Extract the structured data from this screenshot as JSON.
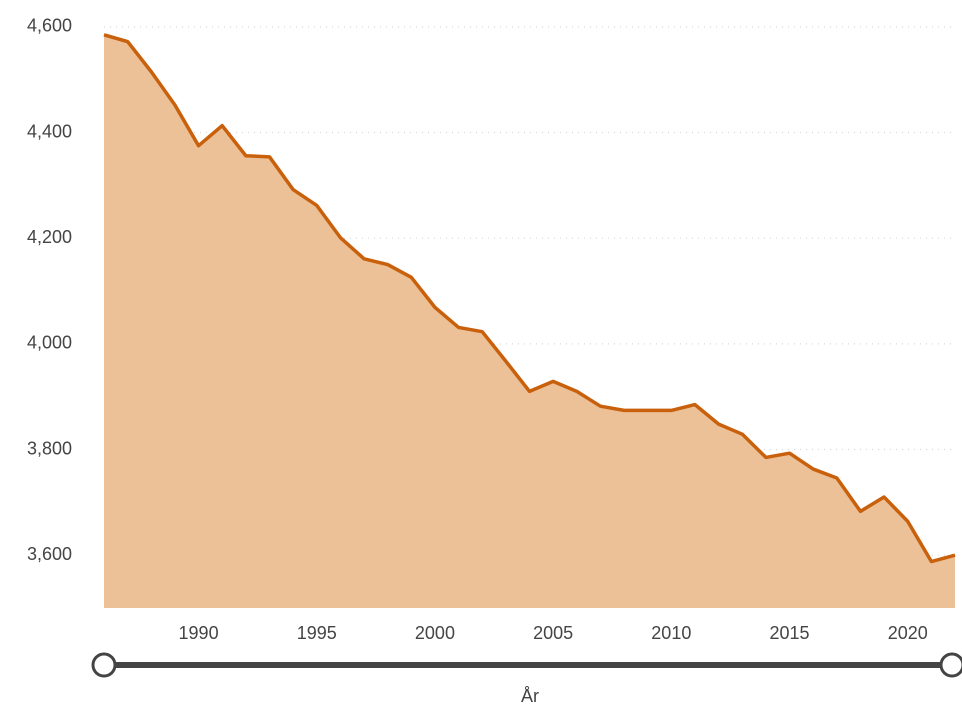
{
  "chart_data": {
    "type": "area",
    "x_label": "År",
    "x": [
      1986,
      1987,
      1988,
      1989,
      1990,
      1991,
      1992,
      1993,
      1994,
      1995,
      1996,
      1997,
      1998,
      1999,
      2000,
      2001,
      2002,
      2003,
      2004,
      2005,
      2006,
      2007,
      2008,
      2009,
      2010,
      2011,
      2012,
      2013,
      2014,
      2015,
      2016,
      2017,
      2018,
      2019,
      2020,
      2021,
      2022
    ],
    "series": [
      {
        "name": "value",
        "color": "#c8600c",
        "fill": "#ecc198",
        "values": [
          4585,
          4572,
          4515,
          4452,
          4375,
          4413,
          4356,
          4354,
          4292,
          4262,
          4201,
          4161,
          4150,
          4126,
          4069,
          4031,
          4023,
          3967,
          3910,
          3929,
          3910,
          3882,
          3874,
          3874,
          3874,
          3885,
          3848,
          3829,
          3785,
          3793,
          3763,
          3746,
          3683,
          3710,
          3664,
          3588,
          3600
        ]
      }
    ],
    "xlim": [
      1986,
      2022
    ],
    "xticks": [
      1990,
      1995,
      2000,
      2005,
      2010,
      2015,
      2020
    ],
    "ylim": [
      3500,
      4630
    ],
    "yticks": [
      {
        "value": 3600,
        "label": "3,600"
      },
      {
        "value": 3800,
        "label": "3,800"
      },
      {
        "value": 4000,
        "label": "4,000"
      },
      {
        "value": 4200,
        "label": "4,200"
      },
      {
        "value": 4400,
        "label": "4,400"
      },
      {
        "value": 4600,
        "label": "4,600"
      }
    ],
    "grid": true
  }
}
